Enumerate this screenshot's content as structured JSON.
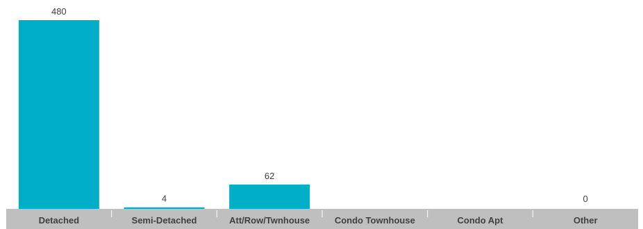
{
  "chart_data": {
    "type": "bar",
    "categories": [
      "Detached",
      "Semi-Detached",
      "Att/Row/Twnhouse",
      "Condo Townhouse",
      "Condo Apt",
      "Other"
    ],
    "values": [
      480,
      4,
      62,
      null,
      null,
      0
    ],
    "value_labels": [
      "480",
      "4",
      "62",
      "",
      "",
      "0"
    ],
    "title": "",
    "xlabel": "",
    "ylabel": "",
    "ylim": [
      0,
      480
    ],
    "grid": false,
    "legend": "none"
  },
  "colors": {
    "bar": "#00AEC8",
    "axis_band": "#BFBFBF",
    "band_divider": "#FFFFFF",
    "text": "#404040"
  }
}
